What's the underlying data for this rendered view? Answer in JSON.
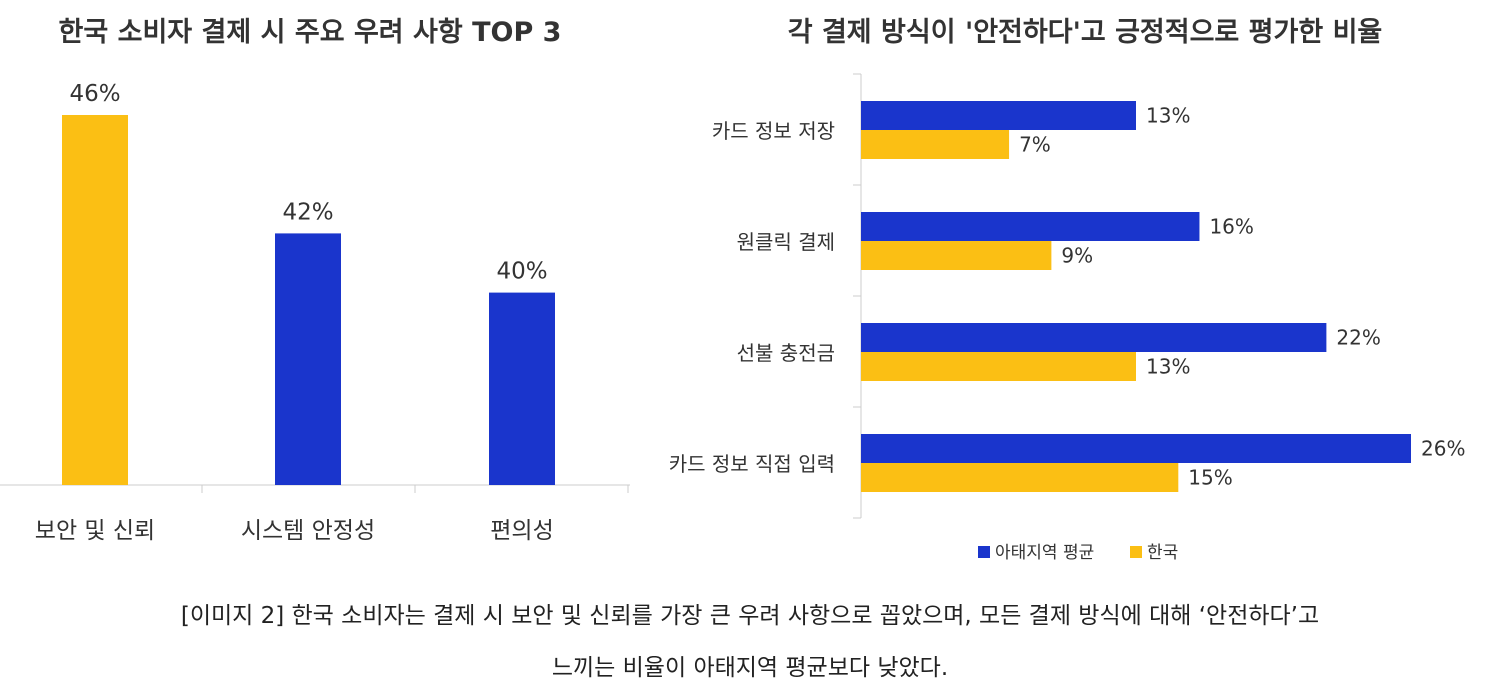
{
  "colors": {
    "blue": "#1a35cc",
    "yellow": "#fbbf14",
    "axis": "#cccccc",
    "text": "#333333"
  },
  "chart_data": [
    {
      "type": "bar",
      "title": "한국 소비자 결제 시 주요 우려 사항 TOP 3",
      "categories": [
        "보안 및 신뢰",
        "시스템 안정성",
        "편의성"
      ],
      "values": [
        46,
        42,
        40
      ],
      "value_labels": [
        "46%",
        "42%",
        "40%"
      ],
      "bar_colors": [
        "#fbbf14",
        "#1a35cc",
        "#1a35cc"
      ],
      "ylim": [
        33.5,
        46
      ],
      "grid": false,
      "legend": "none"
    },
    {
      "type": "bar",
      "orientation": "horizontal",
      "title": "각 결제 방식이 '안전하다'고 긍정적으로 평가한 비율",
      "categories": [
        "카드 정보 저장",
        "원클릭 결제",
        "선불 충전금",
        "카드 정보 직접 입력"
      ],
      "series": [
        {
          "name": "아태지역 평균",
          "values": [
            13,
            16,
            22,
            26
          ],
          "labels": [
            "13%",
            "16%",
            "22%",
            "26%"
          ],
          "color": "#1a35cc"
        },
        {
          "name": "한국",
          "values": [
            7,
            9,
            13,
            15
          ],
          "labels": [
            "7%",
            "9%",
            "13%",
            "15%"
          ],
          "color": "#fbbf14"
        }
      ],
      "xlim": [
        0,
        26
      ],
      "grid": false,
      "legend": "bottom"
    }
  ],
  "caption": {
    "line1": "[이미지 2] 한국 소비자는 결제 시 보안 및 신뢰를 가장 큰 우려 사항으로 꼽았으며, 모든 결제 방식에 대해 ‘안전하다’고",
    "line2": "느끼는 비율이 아태지역 평균보다 낮았다."
  }
}
